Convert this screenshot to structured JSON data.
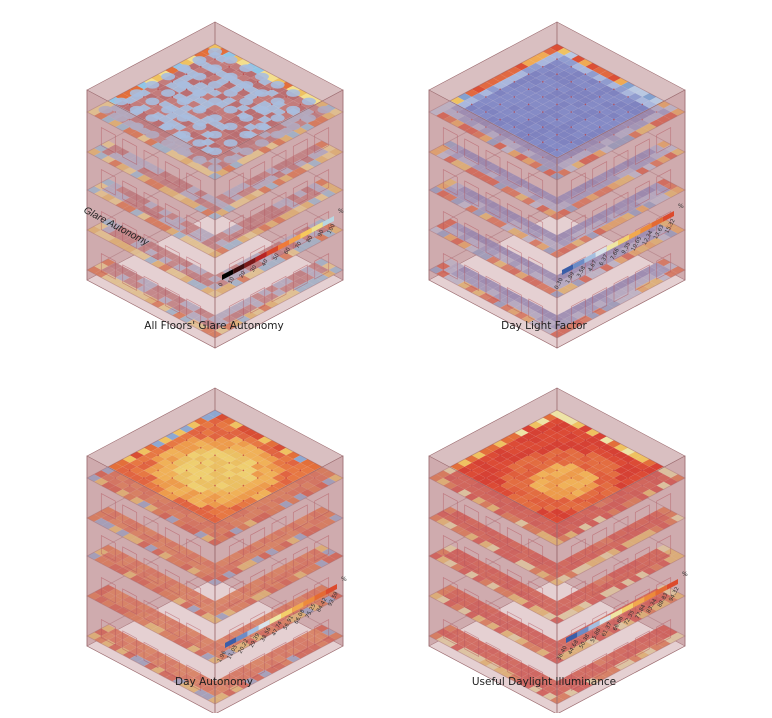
{
  "panels": [
    {
      "id": "glare",
      "caption": "All Floors' Glare Autonomy",
      "side_label": "Glare Autonomy",
      "legend_unit": "%",
      "legend_ticks": [
        "0",
        "10",
        "20",
        "30",
        "40",
        "50",
        "60",
        "70",
        "80",
        "90",
        "100"
      ],
      "legend_colors": [
        "#000000",
        "#3a0d0d",
        "#7a1a1a",
        "#b82424",
        "#d9482c",
        "#ee7a3a",
        "#f3a24a",
        "#f6c95c",
        "#eee08a",
        "#b8d6e0",
        "#8cc6e8"
      ],
      "scheme": "glare"
    },
    {
      "id": "dlf",
      "caption": "Day Light Factor",
      "side_label": "",
      "legend_unit": "%",
      "legend_ticks": [
        "0.30",
        "1.89",
        "3.58",
        "4.67",
        "6.37",
        "7.66",
        "9.35",
        "10.65",
        "12.34",
        "13.63",
        "15.32"
      ],
      "legend_colors": [
        "#3b5ea8",
        "#6d8cc6",
        "#a5bfe0",
        "#d9e3ea",
        "#efe6a4",
        "#f3cf6a",
        "#f1a94e",
        "#ec8a3c",
        "#e46a33",
        "#dc4a2d",
        "#d42e2a"
      ],
      "scheme": "dlf"
    },
    {
      "id": "da",
      "caption": "Day Autonomy",
      "side_label": "",
      "legend_unit": "%",
      "legend_ticks": [
        "1.96",
        "11.05",
        "20.22",
        "29.39",
        "38.56",
        "47.74",
        "56.91",
        "66.08",
        "75.25",
        "84.42",
        "93.59"
      ],
      "legend_colors": [
        "#3b5ea8",
        "#6d8cc6",
        "#a5bfe0",
        "#d9e3ea",
        "#efe6a4",
        "#f3cf6a",
        "#f1a94e",
        "#ec8a3c",
        "#e46a33",
        "#dc4a2d",
        "#d42e2a"
      ],
      "scheme": "warm"
    },
    {
      "id": "udi",
      "caption": "Useful Daylight Illuminance",
      "side_label": "",
      "legend_unit": "%",
      "legend_ticks": [
        "36.40",
        "44.68",
        "50.38",
        "55.88",
        "61.37",
        "66.86",
        "72.35",
        "77.84",
        "83.34",
        "88.83",
        "94.32"
      ],
      "legend_colors": [
        "#3b5ea8",
        "#6d8cc6",
        "#a5bfe0",
        "#d9e3ea",
        "#efe6a4",
        "#f3cf6a",
        "#f1a94e",
        "#ec8a3c",
        "#e46a33",
        "#dc4a2d",
        "#d42e2a"
      ],
      "scheme": "hot"
    }
  ]
}
